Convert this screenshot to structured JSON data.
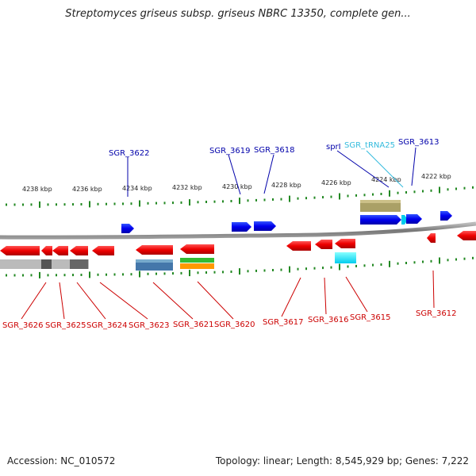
{
  "title": "Streptomyces griseus subsp. griseus NBRC 13350, complete gen...",
  "accession": "Accession: NC_010572",
  "topology": "Topology: linear; Length: 8,545,929 bp; Genes: 7,222",
  "colors": {
    "forward_gene": "#0000ee",
    "reverse_gene": "#ee0000",
    "forward_label": "#0000aa",
    "reverse_label": "#cc0000",
    "trna_label": "#33bbdd",
    "ticks": "#228822",
    "backbone": "#888888"
  },
  "scale": [
    {
      "label": "4238 kbp"
    },
    {
      "label": "4236 kbp"
    },
    {
      "label": "4234 kbp"
    },
    {
      "label": "4232 kbp"
    },
    {
      "label": "4230 kbp"
    },
    {
      "label": "4228 kbp"
    },
    {
      "label": "4226 kbp"
    },
    {
      "label": "4224 kbp"
    },
    {
      "label": "4222 kbp"
    }
  ],
  "top_labels": [
    {
      "id": "sgr-3622",
      "text": "SGR_3622",
      "kind": "gene"
    },
    {
      "id": "sgr-3619",
      "text": "SGR_3619",
      "kind": "gene"
    },
    {
      "id": "sgr-3618",
      "text": "SGR_3618",
      "kind": "gene"
    },
    {
      "id": "sprl",
      "text": "sprI",
      "kind": "gene"
    },
    {
      "id": "sgr-trna25",
      "text": "SGR_tRNA25",
      "kind": "trna"
    },
    {
      "id": "sgr-3613",
      "text": "SGR_3613",
      "kind": "gene"
    }
  ],
  "bottom_labels": [
    {
      "id": "sgr-3626",
      "text": "SGR_3626"
    },
    {
      "id": "sgr-3625",
      "text": "SGR_3625"
    },
    {
      "id": "sgr-3624",
      "text": "SGR_3624"
    },
    {
      "id": "sgr-3623",
      "text": "SGR_3623"
    },
    {
      "id": "sgr-3621",
      "text": "SGR_3621"
    },
    {
      "id": "sgr-3620",
      "text": "SGR_3620"
    },
    {
      "id": "sgr-3617",
      "text": "SGR_3617"
    },
    {
      "id": "sgr-3616",
      "text": "SGR_3616"
    },
    {
      "id": "sgr-3615",
      "text": "SGR_3615"
    },
    {
      "id": "sgr-3612",
      "text": "SGR_3612"
    }
  ]
}
